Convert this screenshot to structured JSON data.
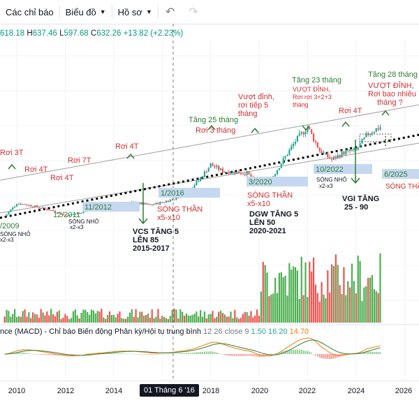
{
  "toolbar": {
    "indicators_label": "Các chỉ báo",
    "chart_type_label": "Biểu đồ",
    "profile_label": "Hồ sơ",
    "undo_icon": "undo-icon",
    "redo_icon": "redo-icon"
  },
  "ohlc": {
    "o": "618.18",
    "h_label": "H",
    "h": "637.46",
    "l_label": "L",
    "l": "597.68",
    "c_label": "C",
    "c": "632.26",
    "change": "+13.82 (+2.23%)"
  },
  "macd": {
    "title": "nce (MACD) - Chỉ báo Biến động Phân kỳ/Hội tụ trung bình",
    "params": "12 26 close 9",
    "v1": "1.50",
    "v2": "16.20",
    "v3": "14.70"
  },
  "xaxis": {
    "ticks": [
      "2010",
      "2012",
      "2014",
      "2018",
      "2020",
      "2022",
      "2024",
      "2026"
    ],
    "cursor_label": "01 Tháng 6 '16"
  },
  "colors": {
    "up": "#26a69a",
    "down": "#ef5350",
    "volume_up": "#4caf50",
    "annotation_red": "#d32f2f",
    "annotation_green": "#2e7d32",
    "annotation_teal": "#26a69a",
    "label_blue_bg": "#c5d8f0",
    "macd_line": "#f57c00",
    "signal_line": "#2e7d32"
  },
  "annotations": {
    "roi_3t": "Rơi 3T",
    "roi_4t_a": "Rơi 4T",
    "roi_4t_b": "Rơi 4T",
    "roi_7t": "Rơi 7T",
    "roi_4t_c": "Rơi 4T",
    "year_2009": "/2009",
    "song_nho_2009": "SÓNG NHỎ",
    "x2_2009": "x2-x3",
    "date_12_2011": "12/2011",
    "song_nho_2011": "SÓNG NHỎ",
    "x2_2011": "x2-x3",
    "box_11_2012": "11/2012",
    "box_1_2016": "1/2016",
    "tang_25": "Tăng 25 tháng",
    "roi_3_thang": "Rơi 3 tháng",
    "song_than_1": "SÓNG THẦN",
    "song_than_1b": "x5-x10",
    "vcs_1": "VCS TĂNG 5",
    "vcs_2": "LÊN 85",
    "vcs_3": "2015-2017",
    "vuot_dinh_1": "Vượt đỉnh,",
    "vuot_dinh_2": "rơi tiếp 5",
    "vuot_dinh_3": "tháng",
    "box_3_2020": "3/2020",
    "song_than_2": "SÓNG THẦN",
    "song_than_2b": "x5-x10",
    "dgw_1": "DGW TĂNG 5",
    "dgw_2": "LÊN 50",
    "dgw_3": "2020-2021",
    "tang_23": "Tăng 23 tháng",
    "vuot_dinh_b1": "VƯỢT ĐỈNH,",
    "vuot_dinh_b2": "Rơi rơi 3+2+3",
    "vuot_dinh_b3": "tháng",
    "roi_4t_d": "Rơi 4T",
    "box_10_2022": "10/2022",
    "song_nho_2022": "SÓNG NHỎ",
    "x2_2022": "x2-x3",
    "vgi_1": "VGI TĂNG",
    "vgi_2": "25 - 90",
    "tang_28": "Tăng 28 tháng",
    "vuot_dinh_c1": "VƯỢT ĐỈNH,",
    "vuot_dinh_c2": "Rơi bao nhiêu",
    "vuot_dinh_c3": "tháng ?",
    "box_6_2025": "6/2025",
    "song_than_3": "SÓNG THẦN"
  },
  "chart_data": {
    "type": "line",
    "title": "",
    "xlabel": "",
    "ylabel": "",
    "x": [
      2009.5,
      2010,
      2010.5,
      2011,
      2011.5,
      2012,
      2012.5,
      2013,
      2013.5,
      2014,
      2014.5,
      2015,
      2015.5,
      2016,
      2016.5,
      2017,
      2017.5,
      2018,
      2018.5,
      2019,
      2019.5,
      2020,
      2020.5,
      2021,
      2021.5,
      2022,
      2022.5,
      2023,
      2023.5,
      2024,
      2024.5,
      2025
    ],
    "series": [
      {
        "values": [
          300,
          440,
          420,
          390,
          360,
          310,
          330,
          370,
          390,
          430,
          450,
          440,
          420,
          450,
          490,
          560,
          680,
          850,
          780,
          770,
          760,
          620,
          700,
          900,
          1100,
          1250,
          1000,
          900,
          980,
          1000,
          1180,
          1250
        ]
      }
    ],
    "xlim": [
      2009,
      2026.5
    ],
    "grid": true,
    "legend": "none"
  }
}
